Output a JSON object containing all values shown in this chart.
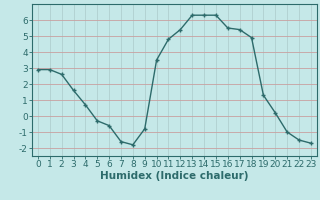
{
  "x": [
    0,
    1,
    2,
    3,
    4,
    5,
    6,
    7,
    8,
    9,
    10,
    11,
    12,
    13,
    14,
    15,
    16,
    17,
    18,
    19,
    20,
    21,
    22,
    23
  ],
  "y": [
    2.9,
    2.9,
    2.6,
    1.6,
    0.7,
    -0.3,
    -0.6,
    -1.6,
    -1.8,
    -0.8,
    3.5,
    4.8,
    5.4,
    6.3,
    6.3,
    6.3,
    5.5,
    5.4,
    4.9,
    1.3,
    0.2,
    -1.0,
    -1.5,
    -1.7
  ],
  "line_color": "#2d6b6b",
  "marker": "+",
  "bg_color": "#c5e8e8",
  "grid_color": "#b0d0d0",
  "axis_color": "#2d6b6b",
  "xlabel": "Humidex (Indice chaleur)",
  "xlim": [
    -0.5,
    23.5
  ],
  "ylim": [
    -2.5,
    7.0
  ],
  "yticks": [
    -2,
    -1,
    0,
    1,
    2,
    3,
    4,
    5,
    6
  ],
  "xticks": [
    0,
    1,
    2,
    3,
    4,
    5,
    6,
    7,
    8,
    9,
    10,
    11,
    12,
    13,
    14,
    15,
    16,
    17,
    18,
    19,
    20,
    21,
    22,
    23
  ],
  "fontsize": 6.5,
  "xlabel_fontsize": 7.5
}
